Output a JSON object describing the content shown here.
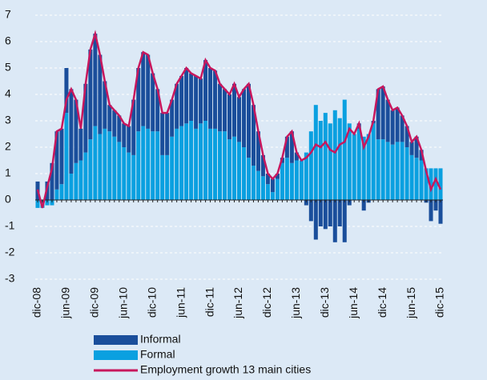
{
  "chart_data": {
    "type": "bar",
    "categories": [
      "dic-08",
      null,
      null,
      null,
      null,
      null,
      "jun-09",
      null,
      null,
      null,
      null,
      null,
      "dic-09",
      null,
      null,
      null,
      null,
      null,
      "jun-10",
      null,
      null,
      null,
      null,
      null,
      "dic-10",
      null,
      null,
      null,
      null,
      null,
      "jun-11",
      null,
      null,
      null,
      null,
      null,
      "dic-11",
      null,
      null,
      null,
      null,
      null,
      "jun-12",
      null,
      null,
      null,
      null,
      null,
      "dic-12",
      null,
      null,
      null,
      null,
      null,
      "jun-13",
      null,
      null,
      null,
      null,
      null,
      "dic-13",
      null,
      null,
      null,
      null,
      null,
      "jun-14",
      null,
      null,
      null,
      null,
      null,
      "dic-14",
      null,
      null,
      null,
      null,
      null,
      "jun-15",
      null,
      null,
      null,
      null,
      null,
      "dic-15"
    ],
    "series": [
      {
        "name": "Informal",
        "color": "#1a4e9b",
        "values": [
          0.7,
          0.0,
          0.7,
          1.4,
          2.2,
          2.1,
          1.7,
          3.2,
          2.4,
          1.2,
          2.6,
          3.4,
          3.5,
          3.0,
          1.8,
          1.0,
          1.0,
          1.0,
          0.9,
          1.0,
          2.1,
          2.4,
          2.8,
          2.8,
          2.2,
          1.6,
          1.6,
          1.6,
          1.4,
          1.7,
          1.9,
          2.1,
          1.8,
          2.0,
          1.7,
          2.3,
          2.3,
          2.2,
          1.8,
          1.6,
          1.7,
          2.0,
          1.7,
          2.2,
          2.8,
          2.3,
          1.5,
          0.8,
          0.4,
          0.5,
          0.2,
          0.2,
          0.8,
          1.2,
          0.3,
          0.0,
          -0.2,
          -0.8,
          -1.5,
          -1.0,
          -1.1,
          -1.0,
          -1.6,
          -1.0,
          -1.6,
          -0.2,
          0.0,
          0.2,
          -0.4,
          -0.1,
          0.1,
          1.9,
          2.0,
          1.6,
          1.3,
          1.3,
          1.0,
          0.8,
          0.5,
          0.8,
          0.4,
          -0.1,
          -0.8,
          -0.4,
          -0.9
        ]
      },
      {
        "name": "Formal",
        "color": "#0aa0e0",
        "values": [
          -0.3,
          -0.3,
          -0.2,
          -0.2,
          0.4,
          0.6,
          3.3,
          1.0,
          1.4,
          1.5,
          1.8,
          2.3,
          2.8,
          2.5,
          2.7,
          2.6,
          2.4,
          2.2,
          2.0,
          1.8,
          1.7,
          2.6,
          2.8,
          2.7,
          2.6,
          2.6,
          1.7,
          1.7,
          2.4,
          2.7,
          2.8,
          2.9,
          3.0,
          2.7,
          2.9,
          3.0,
          2.7,
          2.7,
          2.6,
          2.6,
          2.3,
          2.4,
          2.2,
          2.0,
          1.6,
          1.3,
          1.1,
          0.9,
          0.6,
          0.3,
          0.8,
          1.4,
          1.6,
          1.4,
          1.5,
          1.5,
          1.8,
          2.6,
          3.6,
          3.0,
          3.3,
          2.9,
          3.4,
          3.1,
          3.8,
          2.9,
          2.5,
          2.7,
          2.4,
          2.5,
          2.9,
          2.3,
          2.3,
          2.2,
          2.1,
          2.2,
          2.2,
          2.0,
          1.7,
          1.6,
          1.5,
          1.2,
          1.2,
          1.2,
          1.2
        ]
      },
      {
        "name": "Employment growth 13 main cities",
        "type": "line",
        "color": "#c8175d",
        "values": [
          0.4,
          -0.3,
          0.5,
          1.2,
          2.6,
          2.7,
          3.8,
          4.2,
          3.8,
          2.7,
          4.4,
          5.7,
          6.3,
          5.5,
          4.5,
          3.6,
          3.4,
          3.2,
          2.9,
          2.8,
          3.8,
          5.0,
          5.6,
          5.5,
          4.8,
          4.2,
          3.3,
          3.3,
          3.8,
          4.4,
          4.7,
          5.0,
          4.8,
          4.7,
          4.6,
          5.3,
          5.0,
          4.9,
          4.4,
          4.2,
          4.0,
          4.4,
          3.9,
          4.2,
          4.4,
          3.6,
          2.6,
          1.7,
          1.0,
          0.8,
          1.0,
          1.6,
          2.4,
          2.6,
          1.8,
          1.5,
          1.6,
          1.8,
          2.1,
          2.0,
          2.2,
          1.9,
          1.8,
          2.1,
          2.2,
          2.7,
          2.5,
          2.9,
          2.0,
          2.4,
          3.0,
          4.2,
          4.3,
          3.8,
          3.4,
          3.5,
          3.2,
          2.8,
          2.2,
          2.4,
          1.9,
          1.1,
          0.4,
          0.8,
          0.4
        ]
      }
    ],
    "ylim": [
      -3,
      7
    ],
    "yticks": [
      -3,
      -2,
      -1,
      0,
      1,
      2,
      3,
      4,
      5,
      6,
      7
    ],
    "grid": true
  }
}
